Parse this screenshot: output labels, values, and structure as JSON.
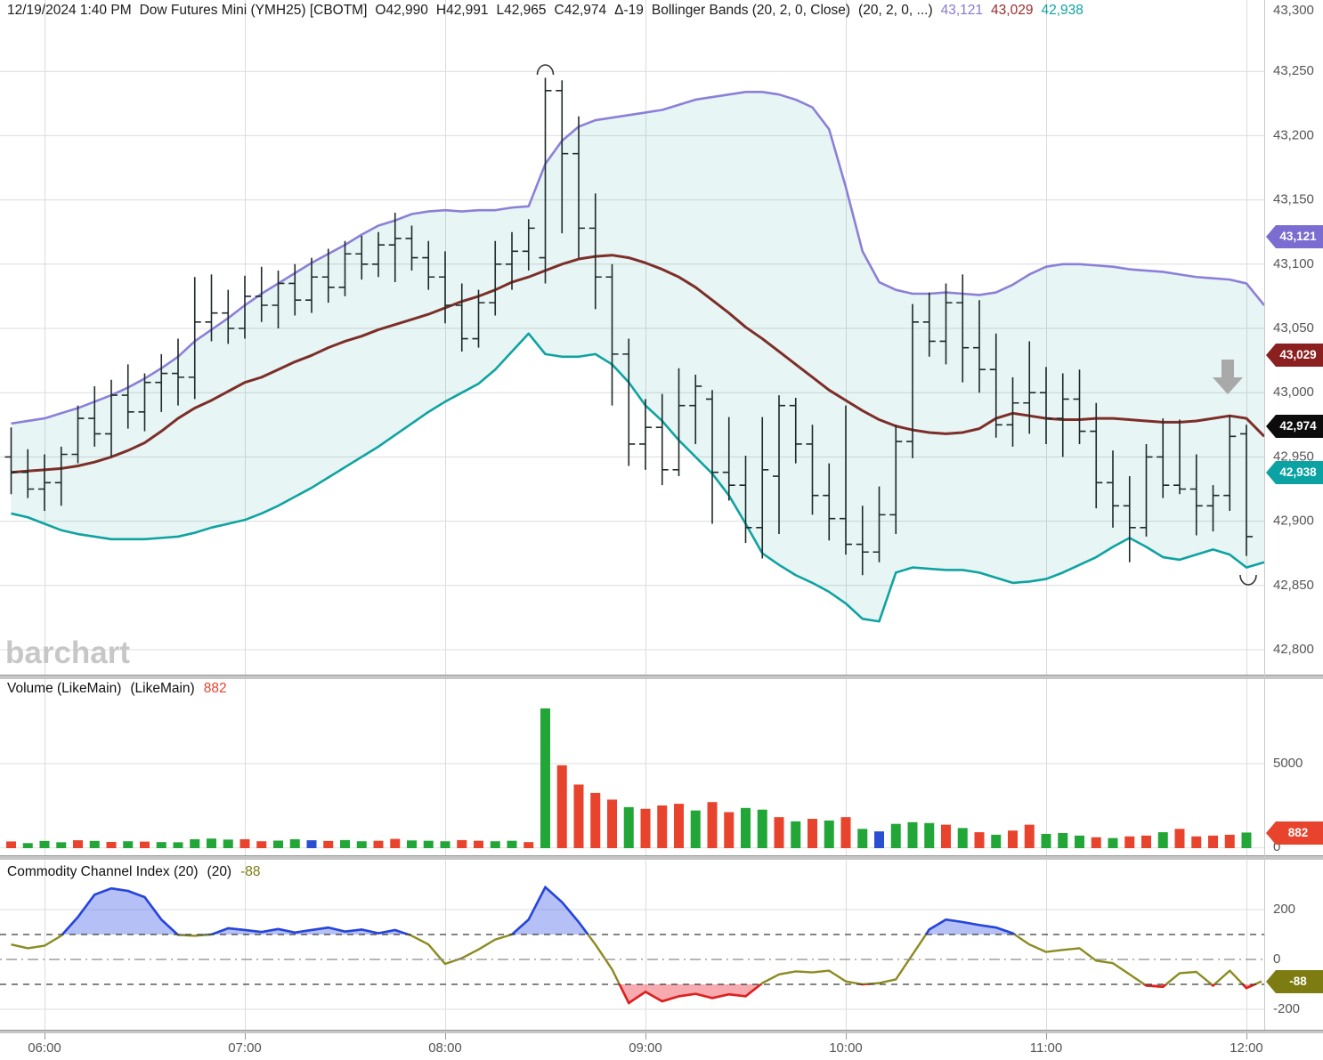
{
  "header": {
    "datetime": "12/19/2024 1:40 PM",
    "symbol": "Dow Futures Mini (YMH25) [CBOTM]",
    "open": "O42,990",
    "high": "H42,991",
    "low": "L42,965",
    "close": "C42,974",
    "change": "Δ-19",
    "study": "Bollinger Bands (20, 2, 0, Close)",
    "study_params": "(20, 2, 0, ...)",
    "bb_upper_value": "43,121",
    "bb_middle_value": "43,029",
    "bb_lower_value": "42,938"
  },
  "watermark": "barchart",
  "panels": {
    "volume": {
      "label": "Volume (LikeMain)",
      "label2": "(LikeMain)",
      "value": "882"
    },
    "cci": {
      "label": "Commodity Channel Index (20)",
      "label2": "(20)",
      "value": "-88"
    }
  },
  "badges": {
    "bb_upper": "43,121",
    "bb_middle": "43,029",
    "last_price": "42,974",
    "bb_lower": "42,938",
    "volume": "882",
    "cci": "-88"
  },
  "colors": {
    "bb_upper_line": "#8b80d8",
    "bb_middle_line": "#7d2e28",
    "bb_lower_line": "#0fa3a0",
    "bb_fill": "rgba(20,160,155,0.10)",
    "bar_stroke": "#1f2a2a",
    "volume_up": "#21a637",
    "volume_down": "#e8432c",
    "volume_neutral": "#2a4fd0",
    "cci_line": "#8b8b20",
    "cci_above": "#2545de",
    "cci_above_fill": "rgba(92,116,235,0.45)",
    "cci_below": "#e01f1f",
    "cci_below_fill": "rgba(240,85,95,0.50)",
    "badge_upper": "#7a6cd0",
    "badge_middle": "#8a2020",
    "badge_last": "#0c0c0c",
    "badge_lower": "#0aa2a2",
    "badge_volume": "#e8432c",
    "badge_cci": "#7c7c12",
    "grid": "#dcdcdc",
    "axis_text": "#555555",
    "arrow": "#a9a9a9"
  },
  "axes": {
    "price_labels": [
      "43,300",
      "43,250",
      "43,200",
      "43,150",
      "43,100",
      "43,050",
      "43,000",
      "42,950",
      "42,900",
      "42,850",
      "42,800"
    ],
    "price_values": [
      43300,
      43250,
      43200,
      43150,
      43100,
      43050,
      43000,
      42950,
      42900,
      42850,
      42800
    ],
    "volume_labels": [
      "5000",
      "0"
    ],
    "volume_values": [
      5000,
      0
    ],
    "cci_labels": [
      "200",
      "0",
      "-200"
    ],
    "cci_values": [
      200,
      0,
      -200
    ],
    "time_labels": [
      "06:00",
      "07:00",
      "08:00",
      "09:00",
      "10:00",
      "11:00",
      "12:00"
    ]
  },
  "chart_data": {
    "type": "ohlc",
    "symbol": "YMH25",
    "title": "Dow Futures Mini (YMH25) [CBOTM] 5-minute bars with Bollinger Bands (20,2,0,Close)",
    "interval_minutes": 5,
    "first_bar_time": "05:50",
    "last_bar_time": "12:00",
    "price_axis": {
      "min": 42800,
      "max": 43300,
      "step": 50
    },
    "ohlc": [
      [
        42950,
        42973,
        42921,
        42938
      ],
      [
        42938,
        42956,
        42918,
        42925
      ],
      [
        42925,
        42952,
        42908,
        42930
      ],
      [
        42930,
        42958,
        42912,
        42952
      ],
      [
        42952,
        42990,
        42945,
        42980
      ],
      [
        42980,
        43005,
        42958,
        42968
      ],
      [
        42968,
        43010,
        42950,
        42998
      ],
      [
        42998,
        43022,
        42972,
        42985
      ],
      [
        42985,
        43015,
        42970,
        43008
      ],
      [
        43008,
        43030,
        42985,
        43015
      ],
      [
        43015,
        43042,
        42990,
        43012
      ],
      [
        43012,
        43090,
        42995,
        43055
      ],
      [
        43055,
        43092,
        43040,
        43062
      ],
      [
        43062,
        43080,
        43038,
        43050
      ],
      [
        43050,
        43091,
        43042,
        43075
      ],
      [
        43075,
        43098,
        43055,
        43068
      ],
      [
        43068,
        43095,
        43050,
        43085
      ],
      [
        43085,
        43100,
        43060,
        43072
      ],
      [
        43072,
        43105,
        43062,
        43090
      ],
      [
        43090,
        43112,
        43070,
        43082
      ],
      [
        43082,
        43118,
        43075,
        43108
      ],
      [
        43108,
        43122,
        43088,
        43100
      ],
      [
        43100,
        43125,
        43090,
        43115
      ],
      [
        43115,
        43140,
        43086,
        43120
      ],
      [
        43120,
        43130,
        43095,
        43105
      ],
      [
        43105,
        43118,
        43080,
        43090
      ],
      [
        43090,
        43110,
        43054,
        43068
      ],
      [
        43068,
        43085,
        43032,
        43042
      ],
      [
        43042,
        43080,
        43035,
        43070
      ],
      [
        43070,
        43118,
        43060,
        43100
      ],
      [
        43100,
        43125,
        43080,
        43110
      ],
      [
        43110,
        43135,
        43095,
        43128
      ],
      [
        43105,
        43245,
        43085,
        43235
      ],
      [
        43235,
        43243,
        43124,
        43186
      ],
      [
        43186,
        43215,
        43105,
        43128
      ],
      [
        43128,
        43155,
        43065,
        43090
      ],
      [
        43090,
        43100,
        42990,
        43030
      ],
      [
        43030,
        43042,
        42943,
        42960
      ],
      [
        42960,
        42995,
        42940,
        42973
      ],
      [
        42973,
        42999,
        42928,
        42940
      ],
      [
        42940,
        43019,
        42935,
        42990
      ],
      [
        42990,
        43014,
        42960,
        43005
      ],
      [
        42995,
        43002,
        42898,
        42938
      ],
      [
        42938,
        42981,
        42916,
        42928
      ],
      [
        42928,
        42951,
        42883,
        42895
      ],
      [
        42895,
        42981,
        42871,
        42940
      ],
      [
        42935,
        42998,
        42890,
        42990
      ],
      [
        42990,
        42996,
        42945,
        42960
      ],
      [
        42960,
        42975,
        42905,
        42920
      ],
      [
        42920,
        42945,
        42885,
        42902
      ],
      [
        42902,
        42990,
        42874,
        42882
      ],
      [
        42882,
        42912,
        42858,
        42876
      ],
      [
        42876,
        42927,
        42868,
        42905
      ],
      [
        42905,
        42975,
        42890,
        42962
      ],
      [
        42962,
        43069,
        42949,
        43055
      ],
      [
        43055,
        43078,
        43028,
        43040
      ],
      [
        43040,
        43085,
        43022,
        43070
      ],
      [
        43070,
        43092,
        43008,
        43035
      ],
      [
        43035,
        43072,
        43000,
        43018
      ],
      [
        43018,
        43046,
        42965,
        42975
      ],
      [
        42975,
        43012,
        42958,
        42992
      ],
      [
        42992,
        43040,
        42968,
        43000
      ],
      [
        43000,
        43020,
        42960,
        42980
      ],
      [
        42980,
        43015,
        42950,
        42995
      ],
      [
        42995,
        43018,
        42960,
        42970
      ],
      [
        42970,
        42992,
        42910,
        42930
      ],
      [
        42930,
        42955,
        42895,
        42912
      ],
      [
        42912,
        42935,
        42868,
        42895
      ],
      [
        42895,
        42960,
        42888,
        42950
      ],
      [
        42950,
        42980,
        42918,
        42928
      ],
      [
        42928,
        42979,
        42921,
        42925
      ],
      [
        42925,
        42952,
        42889,
        42912
      ],
      [
        42912,
        42928,
        42892,
        42920
      ],
      [
        42920,
        42982,
        42908,
        42966
      ],
      [
        42968,
        42975,
        42873,
        42888
      ]
    ],
    "current_bar": {
      "open": 42990,
      "high": 42991,
      "low": 42965,
      "close": 42974,
      "change": -19
    },
    "bollinger": {
      "params": "20, 2, 0, Close",
      "upper": [
        42976,
        42978,
        42980,
        42984,
        42988,
        42993,
        42998,
        43004,
        43011,
        43019,
        43028,
        43040,
        43049,
        43058,
        43068,
        43077,
        43085,
        43093,
        43101,
        43108,
        43115,
        43123,
        43130,
        43134,
        43139,
        43141,
        43142,
        43141,
        43142,
        43142,
        43144,
        43145,
        43178,
        43196,
        43207,
        43212,
        43214,
        43216,
        43218,
        43220,
        43224,
        43228,
        43230,
        43232,
        43234,
        43234,
        43232,
        43228,
        43222,
        43205,
        43160,
        43110,
        43086,
        43080,
        43077,
        43077,
        43078,
        43077,
        43076,
        43078,
        43084,
        43092,
        43098,
        43100,
        43100,
        43099,
        43098,
        43096,
        43095,
        43094,
        43092,
        43090,
        43089,
        43088,
        43085
      ],
      "middle": [
        42938,
        42939,
        42940,
        42941,
        42943,
        42946,
        42950,
        42955,
        42961,
        42970,
        42980,
        42988,
        42994,
        43001,
        43008,
        43012,
        43018,
        43024,
        43029,
        43035,
        43040,
        43044,
        43049,
        43053,
        43057,
        43061,
        43066,
        43071,
        43075,
        43080,
        43086,
        43090,
        43095,
        43100,
        43104,
        43106,
        43107,
        43105,
        43101,
        43096,
        43090,
        43082,
        43072,
        43062,
        43051,
        43042,
        43032,
        43022,
        43012,
        43002,
        42994,
        42986,
        42979,
        42974,
        42971,
        42969,
        42968,
        42969,
        42972,
        42980,
        42984,
        42982,
        42980,
        42979,
        42979,
        42980,
        42980,
        42979,
        42978,
        42977,
        42977,
        42978,
        42980,
        42982,
        42980
      ],
      "lower": [
        42906,
        42903,
        42898,
        42893,
        42890,
        42888,
        42886,
        42886,
        42886,
        42887,
        42888,
        42891,
        42895,
        42898,
        42901,
        42906,
        42912,
        42919,
        42926,
        42934,
        42942,
        42950,
        42958,
        42967,
        42976,
        42985,
        42993,
        43000,
        43007,
        43018,
        43032,
        43046,
        43030,
        43028,
        43028,
        43030,
        43022,
        43008,
        42990,
        42978,
        42963,
        42950,
        42937,
        42920,
        42898,
        42875,
        42866,
        42858,
        42852,
        42845,
        42836,
        42824,
        42822,
        42860,
        42864,
        42863,
        42862,
        42862,
        42860,
        42856,
        42852,
        42853,
        42855,
        42860,
        42866,
        42872,
        42880,
        42887,
        42880,
        42872,
        42870,
        42874,
        42878,
        42874,
        42864
      ],
      "edge": {
        "upper": 43068,
        "middle": 42966,
        "lower": 42868
      },
      "current": {
        "upper": 43121,
        "middle": 43029,
        "lower": 42938
      }
    },
    "volume": {
      "axis_max_label": 5000,
      "current": 882,
      "values": [
        350,
        250,
        380,
        300,
        420,
        380,
        320,
        360,
        340,
        310,
        300,
        480,
        520,
        460,
        480,
        360,
        400,
        480,
        420,
        380,
        430,
        360,
        390,
        500,
        410,
        390,
        360,
        430,
        390,
        360,
        390,
        310,
        8300,
        4900,
        3750,
        3250,
        2850,
        2400,
        2300,
        2500,
        2600,
        2200,
        2700,
        2100,
        2350,
        2250,
        1800,
        1550,
        1700,
        1600,
        1800,
        1100,
        950,
        1400,
        1500,
        1450,
        1350,
        1150,
        900,
        750,
        1000,
        1350,
        800,
        850,
        700,
        600,
        550,
        650,
        700,
        900,
        1100,
        650,
        700,
        750,
        882
      ],
      "colors": [
        "r",
        "g",
        "g",
        "g",
        "r",
        "g",
        "r",
        "g",
        "r",
        "g",
        "g",
        "g",
        "g",
        "g",
        "r",
        "r",
        "g",
        "g",
        "b",
        "r",
        "g",
        "g",
        "r",
        "r",
        "g",
        "g",
        "g",
        "r",
        "r",
        "g",
        "g",
        "r",
        "g",
        "r",
        "r",
        "r",
        "r",
        "g",
        "r",
        "r",
        "r",
        "g",
        "r",
        "r",
        "g",
        "g",
        "r",
        "g",
        "r",
        "g",
        "r",
        "g",
        "b",
        "g",
        "g",
        "g",
        "r",
        "g",
        "r",
        "g",
        "r",
        "r",
        "g",
        "g",
        "g",
        "r",
        "g",
        "r",
        "r",
        "g",
        "r",
        "r",
        "r",
        "r",
        "g"
      ]
    },
    "cci": {
      "period": 20,
      "current": -88,
      "thresholds": {
        "upper": 100,
        "zero": 0,
        "lower": -100
      },
      "values": [
        60,
        45,
        55,
        95,
        170,
        260,
        285,
        275,
        250,
        160,
        98,
        95,
        100,
        125,
        118,
        110,
        122,
        108,
        118,
        128,
        112,
        120,
        105,
        118,
        95,
        60,
        -18,
        5,
        40,
        80,
        100,
        160,
        290,
        230,
        150,
        60,
        -40,
        -175,
        -130,
        -168,
        -148,
        -138,
        -155,
        -140,
        -148,
        -95,
        -60,
        -48,
        -52,
        -45,
        -88,
        -100,
        -95,
        -80,
        20,
        120,
        160,
        150,
        138,
        128,
        105,
        60,
        30,
        38,
        45,
        -5,
        -15,
        -60,
        -105,
        -110,
        -55,
        -50,
        -105,
        -45,
        -115
      ],
      "edge": -88
    },
    "annotations": {
      "session_high_marker_bar_index": 32,
      "session_low_marker_bar_index": 74,
      "down_arrow_signal": {
        "near_time": "11:55",
        "near_price": 43010
      }
    }
  }
}
